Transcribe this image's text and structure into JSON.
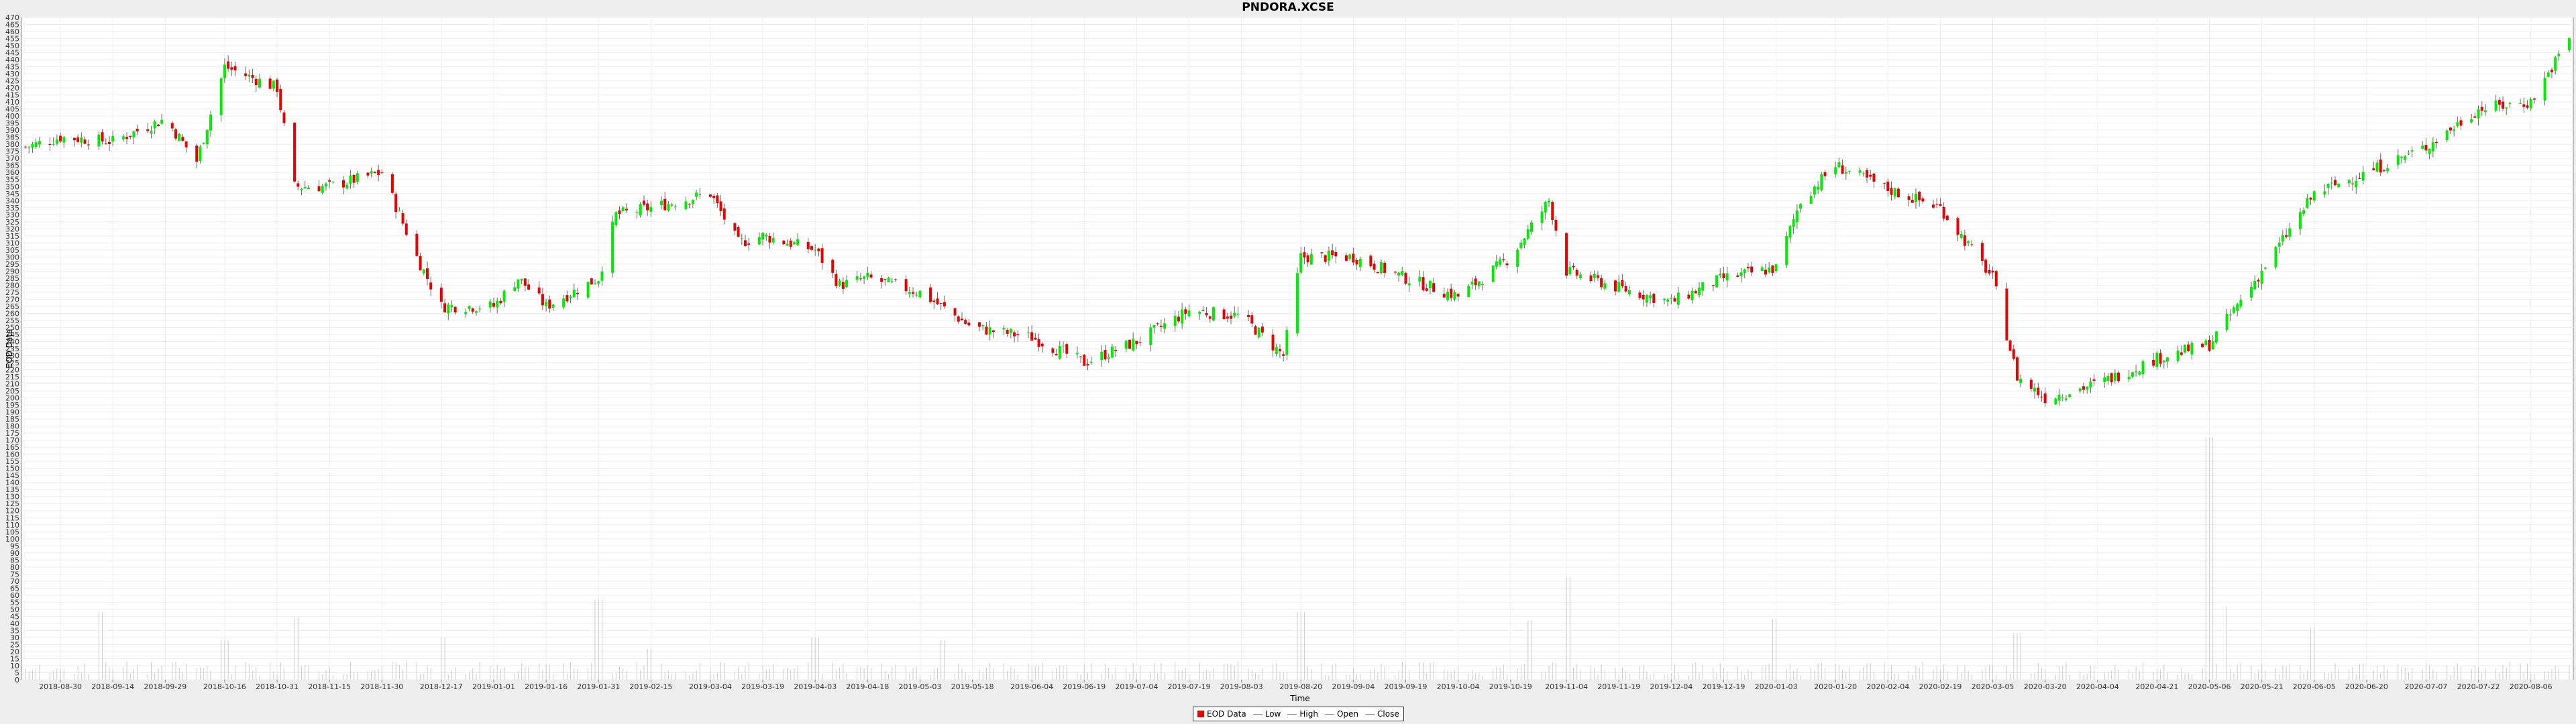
{
  "chart_data": {
    "type": "candlestick",
    "title": "PNDORA.XCSE",
    "xlabel": "Time",
    "ylabel": "EOD Data",
    "ylim": [
      0,
      470
    ],
    "y_ticks": [
      0,
      5,
      10,
      15,
      20,
      25,
      30,
      35,
      40,
      45,
      50,
      55,
      60,
      65,
      70,
      75,
      80,
      85,
      90,
      95,
      100,
      105,
      110,
      115,
      120,
      125,
      130,
      135,
      140,
      145,
      150,
      155,
      160,
      165,
      170,
      175,
      180,
      185,
      190,
      195,
      200,
      205,
      210,
      215,
      220,
      225,
      230,
      235,
      240,
      245,
      250,
      255,
      260,
      265,
      270,
      275,
      280,
      285,
      290,
      295,
      300,
      305,
      310,
      315,
      320,
      325,
      330,
      335,
      340,
      345,
      350,
      355,
      360,
      365,
      370,
      375,
      380,
      385,
      390,
      395,
      400,
      405,
      410,
      415,
      420,
      425,
      430,
      435,
      440,
      445,
      450,
      455,
      460,
      465,
      470
    ],
    "y_tick_labels": [
      "0",
      "5",
      "10",
      "15",
      "20",
      "25",
      "30",
      "35",
      "40",
      "45",
      "50",
      "55",
      "60",
      "65",
      "70",
      "75",
      "80",
      "85",
      "90",
      "95",
      "100",
      "105",
      "110",
      "115",
      "120",
      "125",
      "130",
      "135",
      "140",
      "145",
      "150",
      "155",
      "160",
      "165",
      "170",
      "175",
      "180",
      "185",
      "190",
      "195",
      "200",
      "205",
      "210",
      "215",
      "220",
      "225",
      "230",
      "235",
      "240",
      "245",
      "250",
      "255",
      "260",
      "265",
      "270",
      "275",
      "280",
      "285",
      "290",
      "295",
      "300",
      "305",
      "310",
      "315",
      "320",
      "325",
      "330",
      "335",
      "340",
      "345",
      "350",
      "355",
      "360",
      "365",
      "370",
      "375",
      "380",
      "385",
      "390",
      "395",
      "400",
      "405",
      "410",
      "415",
      "420",
      "425",
      "430",
      "435",
      "440",
      "445",
      "450",
      "455",
      "460",
      "465",
      "470"
    ],
    "x_range": [
      "2018-08-20",
      "2020-08-17"
    ],
    "x_tick_labels": [
      "2018-08-30",
      "2018-09-14",
      "2018-09-29",
      "2018-10-16",
      "2018-10-31",
      "2018-11-15",
      "2018-11-30",
      "2018-12-17",
      "2019-01-01",
      "2019-01-16",
      "2019-01-31",
      "2019-02-15",
      "2019-03-04",
      "2019-03-19",
      "2019-04-03",
      "2019-04-18",
      "2019-05-03",
      "2019-05-18",
      "2019-06-04",
      "2019-06-19",
      "2019-07-04",
      "2019-07-19",
      "2019-08-03",
      "2019-08-20",
      "2019-09-04",
      "2019-09-19",
      "2019-10-04",
      "2019-10-19",
      "2019-11-04",
      "2019-11-19",
      "2019-12-04",
      "2019-12-19",
      "2020-01-03",
      "2020-01-20",
      "2020-02-04",
      "2020-02-19",
      "2020-03-05",
      "2020-03-20",
      "2020-04-04",
      "2020-04-21",
      "2020-05-06",
      "2020-05-21",
      "2020-06-05",
      "2020-06-20",
      "2020-07-07",
      "2020-07-22",
      "2020-08-06"
    ],
    "price_series": [
      {
        "date": "2018-08-20",
        "close": 378
      },
      {
        "date": "2018-08-30",
        "close": 385
      },
      {
        "date": "2018-09-14",
        "close": 382
      },
      {
        "date": "2018-09-29",
        "close": 398
      },
      {
        "date": "2018-10-08",
        "close": 368
      },
      {
        "date": "2018-10-16",
        "close": 435
      },
      {
        "date": "2018-10-31",
        "close": 420
      },
      {
        "date": "2018-11-05",
        "close": 350
      },
      {
        "date": "2018-11-15",
        "close": 350
      },
      {
        "date": "2018-11-30",
        "close": 360
      },
      {
        "date": "2018-12-10",
        "close": 300
      },
      {
        "date": "2018-12-17",
        "close": 265
      },
      {
        "date": "2019-01-01",
        "close": 265
      },
      {
        "date": "2019-01-08",
        "close": 285
      },
      {
        "date": "2019-01-16",
        "close": 265
      },
      {
        "date": "2019-01-31",
        "close": 285
      },
      {
        "date": "2019-02-05",
        "close": 330
      },
      {
        "date": "2019-02-15",
        "close": 335
      },
      {
        "date": "2019-03-04",
        "close": 345
      },
      {
        "date": "2019-03-12",
        "close": 310
      },
      {
        "date": "2019-03-19",
        "close": 315
      },
      {
        "date": "2019-04-03",
        "close": 305
      },
      {
        "date": "2019-04-10",
        "close": 280
      },
      {
        "date": "2019-04-18",
        "close": 285
      },
      {
        "date": "2019-05-03",
        "close": 275
      },
      {
        "date": "2019-05-18",
        "close": 250
      },
      {
        "date": "2019-06-04",
        "close": 243
      },
      {
        "date": "2019-06-19",
        "close": 225
      },
      {
        "date": "2019-07-04",
        "close": 240
      },
      {
        "date": "2019-07-19",
        "close": 262
      },
      {
        "date": "2019-08-03",
        "close": 258
      },
      {
        "date": "2019-08-15",
        "close": 230
      },
      {
        "date": "2019-08-20",
        "close": 300
      },
      {
        "date": "2019-09-04",
        "close": 300
      },
      {
        "date": "2019-09-19",
        "close": 285
      },
      {
        "date": "2019-10-04",
        "close": 272
      },
      {
        "date": "2019-10-19",
        "close": 300
      },
      {
        "date": "2019-10-30",
        "close": 340
      },
      {
        "date": "2019-11-04",
        "close": 290
      },
      {
        "date": "2019-11-19",
        "close": 278
      },
      {
        "date": "2019-12-04",
        "close": 268
      },
      {
        "date": "2019-12-19",
        "close": 285
      },
      {
        "date": "2020-01-03",
        "close": 292
      },
      {
        "date": "2020-01-10",
        "close": 340
      },
      {
        "date": "2020-01-20",
        "close": 365
      },
      {
        "date": "2020-02-04",
        "close": 348
      },
      {
        "date": "2020-02-19",
        "close": 335
      },
      {
        "date": "2020-03-05",
        "close": 285
      },
      {
        "date": "2020-03-12",
        "close": 215
      },
      {
        "date": "2020-03-20",
        "close": 200
      },
      {
        "date": "2020-04-04",
        "close": 210
      },
      {
        "date": "2020-04-21",
        "close": 228
      },
      {
        "date": "2020-05-06",
        "close": 238
      },
      {
        "date": "2020-05-21",
        "close": 290
      },
      {
        "date": "2020-06-05",
        "close": 345
      },
      {
        "date": "2020-06-20",
        "close": 360
      },
      {
        "date": "2020-07-07",
        "close": 378
      },
      {
        "date": "2020-07-22",
        "close": 405
      },
      {
        "date": "2020-08-06",
        "close": 410
      },
      {
        "date": "2020-08-17",
        "close": 455
      }
    ],
    "volume_series": [
      {
        "date": "2018-08-30",
        "volume": 8
      },
      {
        "date": "2018-09-10",
        "volume": 48
      },
      {
        "date": "2018-09-29",
        "volume": 10
      },
      {
        "date": "2018-10-16",
        "volume": 28
      },
      {
        "date": "2018-11-05",
        "volume": 44
      },
      {
        "date": "2018-12-17",
        "volume": 30
      },
      {
        "date": "2019-01-20",
        "volume": 12
      },
      {
        "date": "2019-01-31",
        "volume": 57
      },
      {
        "date": "2019-02-15",
        "volume": 22
      },
      {
        "date": "2019-04-03",
        "volume": 30
      },
      {
        "date": "2019-05-10",
        "volume": 28
      },
      {
        "date": "2019-08-20",
        "volume": 48
      },
      {
        "date": "2019-10-25",
        "volume": 42
      },
      {
        "date": "2019-11-04",
        "volume": 73
      },
      {
        "date": "2020-01-03",
        "volume": 43
      },
      {
        "date": "2020-03-12",
        "volume": 33
      },
      {
        "date": "2020-05-06",
        "volume": 172
      },
      {
        "date": "2020-05-10",
        "volume": 52
      },
      {
        "date": "2020-06-05",
        "volume": 37
      }
    ],
    "grid": true,
    "legend_position": "bottom-center",
    "colors": {
      "up": "#00ee00",
      "down": "#ee0000",
      "volume": "#cccccc"
    }
  },
  "legend": {
    "items": [
      {
        "label": "EOD Data",
        "color": "#ee0000",
        "kind": "swatch"
      },
      {
        "label": "Low",
        "color": "#888888",
        "kind": "line"
      },
      {
        "label": "High",
        "color": "#888888",
        "kind": "line"
      },
      {
        "label": "Open",
        "color": "#888888",
        "kind": "line"
      },
      {
        "label": "Close",
        "color": "#888888",
        "kind": "line"
      }
    ]
  }
}
